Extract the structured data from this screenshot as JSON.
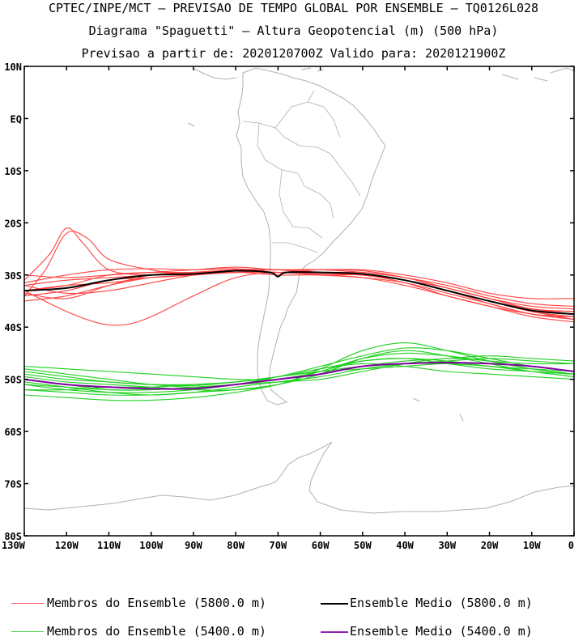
{
  "title": {
    "line1": "CPTEC/INPE/MCT – PREVISAO DE TEMPO GLOBAL POR ENSEMBLE – TQ0126L028",
    "line2": "Diagrama \"Spaguetti\" – Altura Geopotencial (m) (500 hPa)",
    "line3": "Previsao a partir de: 2020120700Z  Valido para: 2020121900Z"
  },
  "map": {
    "lon_range": [
      -130,
      0
    ],
    "lat_range": [
      -80,
      10
    ],
    "lon_ticks": [
      -130,
      -120,
      -110,
      -100,
      -90,
      -80,
      -70,
      -60,
      -50,
      -40,
      -30,
      -20,
      -10,
      0
    ],
    "lon_tick_labels": [
      "130W",
      "120W",
      "110W",
      "100W",
      "90W",
      "80W",
      "70W",
      "60W",
      "50W",
      "40W",
      "30W",
      "20W",
      "10W",
      "0"
    ],
    "lat_ticks": [
      10,
      0,
      -10,
      -20,
      -30,
      -40,
      -50,
      -60,
      -70,
      -80
    ],
    "lat_tick_labels": [
      "10N",
      "EQ",
      "10S",
      "20S",
      "30S",
      "40S",
      "50S",
      "60S",
      "70S",
      "80S"
    ],
    "coastline_color": "#b0b0b0"
  },
  "chart_data": {
    "type": "line",
    "x_unit": "longitude (deg)",
    "y_unit": "latitude (deg)",
    "xlim": [
      -130,
      0
    ],
    "ylim": [
      -80,
      10
    ],
    "series": [
      {
        "name": "Ensemble Medio (5800.0 m)",
        "color": "#000000",
        "x": [
          -130,
          -120,
          -110,
          -100,
          -90,
          -80,
          -72,
          -70,
          -68,
          -60,
          -50,
          -40,
          -30,
          -20,
          -10,
          0
        ],
        "y": [
          -33,
          -32.5,
          -31,
          -30,
          -29.8,
          -29.2,
          -29.5,
          -30.3,
          -29.5,
          -29.5,
          -29.8,
          -31,
          -33,
          -35,
          -36.8,
          -37.5
        ]
      },
      {
        "name": "Ensemble Medio (5400.0 m)",
        "color": "#8000a0",
        "x": [
          -130,
          -120,
          -110,
          -100,
          -90,
          -80,
          -70,
          -60,
          -50,
          -40,
          -30,
          -20,
          -10,
          0
        ],
        "y": [
          -50,
          -51,
          -51.5,
          -51.8,
          -51.8,
          -51,
          -50,
          -49,
          -47.5,
          -47,
          -46.8,
          -47,
          -47.5,
          -48.5
        ]
      }
    ],
    "members_5800": [
      {
        "x": [
          -130,
          -120,
          -110,
          -100,
          -90,
          -80,
          -70,
          -60,
          -50,
          -40,
          -30,
          -20,
          -10,
          0
        ],
        "y": [
          -33,
          -32,
          -30,
          -29.5,
          -29.5,
          -29,
          -29,
          -29,
          -29.5,
          -30.5,
          -32.5,
          -34.5,
          -36,
          -36.5
        ]
      },
      {
        "x": [
          -130,
          -120,
          -110,
          -100,
          -90,
          -80,
          -70,
          -60,
          -50,
          -40,
          -30,
          -20,
          -10,
          0
        ],
        "y": [
          -34,
          -33,
          -31,
          -30.5,
          -30,
          -29.5,
          -29.5,
          -30,
          -30.5,
          -31.5,
          -33.5,
          -35.5,
          -37.5,
          -38.5
        ]
      },
      {
        "x": [
          -130,
          -124,
          -120,
          -116,
          -110,
          -100,
          -90,
          -80,
          -70,
          -60,
          -50,
          -40,
          -30,
          -20,
          -10,
          0
        ],
        "y": [
          -31,
          -26,
          -21,
          -24,
          -29,
          -30,
          -29.5,
          -29,
          -29,
          -29.5,
          -30,
          -31,
          -32.5,
          -34.5,
          -36.5,
          -37
        ]
      },
      {
        "x": [
          -130,
          -125,
          -120,
          -115,
          -110,
          -100,
          -90,
          -80,
          -70,
          -60,
          -50,
          -40,
          -30,
          -20,
          -10,
          0
        ],
        "y": [
          -34,
          -29,
          -22,
          -23,
          -27,
          -29,
          -30,
          -29,
          -29,
          -29.5,
          -30,
          -31,
          -33,
          -35,
          -37,
          -38
        ]
      },
      {
        "x": [
          -130,
          -120,
          -112,
          -106,
          -100,
          -90,
          -80,
          -70,
          -60,
          -50,
          -40,
          -30,
          -20,
          -10,
          0
        ],
        "y": [
          -33,
          -37,
          -39.3,
          -39.5,
          -38,
          -34,
          -30.5,
          -29.5,
          -29.5,
          -30,
          -31,
          -33,
          -35,
          -37,
          -38.5
        ]
      },
      {
        "x": [
          -130,
          -120,
          -110,
          -100,
          -90,
          -80,
          -70,
          -60,
          -50,
          -40,
          -30,
          -20,
          -10,
          0
        ],
        "y": [
          -32,
          -31,
          -30.5,
          -30,
          -29.5,
          -29,
          -29,
          -29.5,
          -29.5,
          -30.5,
          -32,
          -34,
          -35.5,
          -36
        ]
      },
      {
        "x": [
          -130,
          -120,
          -110,
          -100,
          -90,
          -80,
          -70,
          -60,
          -50,
          -40,
          -30,
          -20,
          -10,
          0
        ],
        "y": [
          -35,
          -34,
          -32,
          -30.5,
          -30,
          -29.5,
          -30,
          -30,
          -30.5,
          -32,
          -34,
          -36,
          -38,
          -39
        ]
      },
      {
        "x": [
          -130,
          -120,
          -110,
          -100,
          -90,
          -80,
          -70,
          -60,
          -50,
          -40,
          -30,
          -20,
          -10,
          0
        ],
        "y": [
          -30,
          -30.5,
          -30,
          -29.5,
          -29,
          -28.5,
          -29,
          -29,
          -29,
          -30,
          -31.5,
          -33.5,
          -34.5,
          -34.5
        ]
      },
      {
        "x": [
          -130,
          -120,
          -110,
          -100,
          -90,
          -80,
          -70,
          -60,
          -50,
          -40,
          -30,
          -20,
          -10,
          0
        ],
        "y": [
          -32,
          -33.5,
          -33,
          -31.5,
          -30,
          -29,
          -29.5,
          -29.5,
          -30,
          -31,
          -33,
          -35.5,
          -37.5,
          -38
        ]
      },
      {
        "x": [
          -130,
          -120,
          -110,
          -100,
          -90,
          -80,
          -70,
          -60,
          -50,
          -40,
          -30,
          -20,
          -10,
          0
        ],
        "y": [
          -33.5,
          -34.5,
          -32,
          -30,
          -29.5,
          -29.5,
          -29,
          -30,
          -30,
          -31.5,
          -34,
          -36,
          -37.5,
          -38.5
        ]
      },
      {
        "x": [
          -130,
          -120,
          -110,
          -100,
          -90,
          -80,
          -70,
          -60,
          -50,
          -40,
          -30,
          -20,
          -10,
          0
        ],
        "y": [
          -31.5,
          -30,
          -29,
          -28.8,
          -29,
          -28.8,
          -29.5,
          -29,
          -29.2,
          -30.5,
          -32.5,
          -34.5,
          -36.5,
          -37
        ]
      },
      {
        "x": [
          -130,
          -120,
          -110,
          -100,
          -90,
          -80,
          -70,
          -60,
          -50,
          -40,
          -30,
          -20,
          -10,
          0
        ],
        "y": [
          -33,
          -32,
          -31.5,
          -30.5,
          -30,
          -29.5,
          -29.5,
          -29.8,
          -30,
          -31,
          -33,
          -35,
          -36.5,
          -37.5
        ]
      }
    ],
    "members_5400": [
      {
        "x": [
          -130,
          -120,
          -110,
          -100,
          -90,
          -80,
          -70,
          -60,
          -50,
          -40,
          -30,
          -20,
          -10,
          0
        ],
        "y": [
          -48,
          -49,
          -50,
          -51,
          -51.5,
          -51,
          -50,
          -48.5,
          -46,
          -45,
          -45.5,
          -46.5,
          -47,
          -47
        ]
      },
      {
        "x": [
          -130,
          -120,
          -110,
          -100,
          -90,
          -80,
          -70,
          -60,
          -50,
          -40,
          -30,
          -20,
          -10,
          0
        ],
        "y": [
          -50,
          -51,
          -52,
          -52,
          -51.5,
          -51,
          -50.5,
          -50,
          -48.5,
          -47,
          -46,
          -46.5,
          -48,
          -49
        ]
      },
      {
        "x": [
          -130,
          -120,
          -110,
          -100,
          -90,
          -80,
          -70,
          -60,
          -50,
          -40,
          -30,
          -20,
          -10,
          0
        ],
        "y": [
          -52,
          -52.5,
          -53,
          -53,
          -52.5,
          -52,
          -51,
          -49,
          -46,
          -44.5,
          -45.5,
          -47,
          -48.5,
          -49.5
        ]
      },
      {
        "x": [
          -130,
          -120,
          -110,
          -100,
          -90,
          -80,
          -70,
          -60,
          -50,
          -40,
          -30,
          -20,
          -10,
          0
        ],
        "y": [
          -53,
          -53.5,
          -54,
          -54,
          -53.5,
          -52.5,
          -51,
          -48.5,
          -46.5,
          -46,
          -47,
          -48,
          -48.5,
          -49
        ]
      },
      {
        "x": [
          -130,
          -120,
          -110,
          -100,
          -90,
          -80,
          -70,
          -60,
          -50,
          -40,
          -30,
          -20,
          -10,
          0
        ],
        "y": [
          -49,
          -50,
          -50.5,
          -51,
          -51,
          -50.5,
          -49.5,
          -48,
          -46.5,
          -46,
          -46.5,
          -47.5,
          -48,
          -48.5
        ]
      },
      {
        "x": [
          -130,
          -120,
          -110,
          -100,
          -90,
          -80,
          -70,
          -60,
          -50,
          -40,
          -30,
          -20,
          -10,
          0
        ],
        "y": [
          -51,
          -51.5,
          -52,
          -52,
          -51.5,
          -51,
          -49.5,
          -47.5,
          -45.5,
          -44,
          -44.5,
          -46,
          -47.5,
          -48.5
        ]
      },
      {
        "x": [
          -130,
          -120,
          -110,
          -100,
          -90,
          -80,
          -70,
          -60,
          -50,
          -40,
          -30,
          -20,
          -10,
          0
        ],
        "y": [
          -47.5,
          -48,
          -48.5,
          -49,
          -49.5,
          -50,
          -50,
          -49,
          -47.5,
          -46.5,
          -46,
          -45.5,
          -46,
          -46.5
        ]
      },
      {
        "x": [
          -130,
          -120,
          -110,
          -100,
          -90,
          -80,
          -70,
          -60,
          -50,
          -40,
          -30,
          -20,
          -10,
          0
        ],
        "y": [
          -50.5,
          -51.5,
          -52.5,
          -53,
          -52.5,
          -51.5,
          -50.5,
          -49.5,
          -48,
          -47,
          -46.5,
          -46,
          -46.5,
          -47
        ]
      },
      {
        "x": [
          -130,
          -120,
          -110,
          -100,
          -90,
          -80,
          -70,
          -60,
          -50,
          -40,
          -30,
          -20,
          -10,
          0
        ],
        "y": [
          -52,
          -52,
          -51.5,
          -51.5,
          -51,
          -50.5,
          -49.5,
          -48,
          -47,
          -47.5,
          -48.5,
          -49,
          -49.5,
          -50
        ]
      },
      {
        "x": [
          -130,
          -120,
          -110,
          -100,
          -90,
          -80,
          -70,
          -60,
          -50,
          -40,
          -30,
          -20,
          -10,
          0
        ],
        "y": [
          -49.5,
          -50.5,
          -51,
          -51.5,
          -52,
          -52,
          -51,
          -48,
          -44.5,
          -43,
          -44.5,
          -46.5,
          -48,
          -49
        ]
      },
      {
        "x": [
          -130,
          -120,
          -110,
          -100,
          -90,
          -80,
          -70,
          -60,
          -50,
          -40,
          -30,
          -20,
          -10,
          0
        ],
        "y": [
          -51,
          -52,
          -52.5,
          -52.5,
          -52,
          -51,
          -49.5,
          -48.5,
          -48,
          -47.5,
          -47,
          -47.5,
          -48.5,
          -49.5
        ]
      },
      {
        "x": [
          -130,
          -120,
          -110,
          -100,
          -90,
          -80,
          -70,
          -60,
          -50,
          -40,
          -30,
          -20,
          -10,
          0
        ],
        "y": [
          -48.5,
          -49.5,
          -50.5,
          -51,
          -51.2,
          -50.5,
          -49.5,
          -48.5,
          -47.5,
          -47,
          -47,
          -47.5,
          -48.5,
          -49
        ]
      }
    ],
    "member_color_5800": "#ff4040",
    "member_color_5400": "#20d020"
  },
  "legend": {
    "items": [
      {
        "label": "Membros do Ensemble (5800.0 m)",
        "color": "#ff6060"
      },
      {
        "label": "Ensemble Medio (5800.0 m)",
        "color": "#000000"
      },
      {
        "label": "Membros do Ensemble (5400.0 m)",
        "color": "#40d040"
      },
      {
        "label": "Ensemble Medio (5400.0 m)",
        "color": "#9020b0"
      }
    ]
  }
}
